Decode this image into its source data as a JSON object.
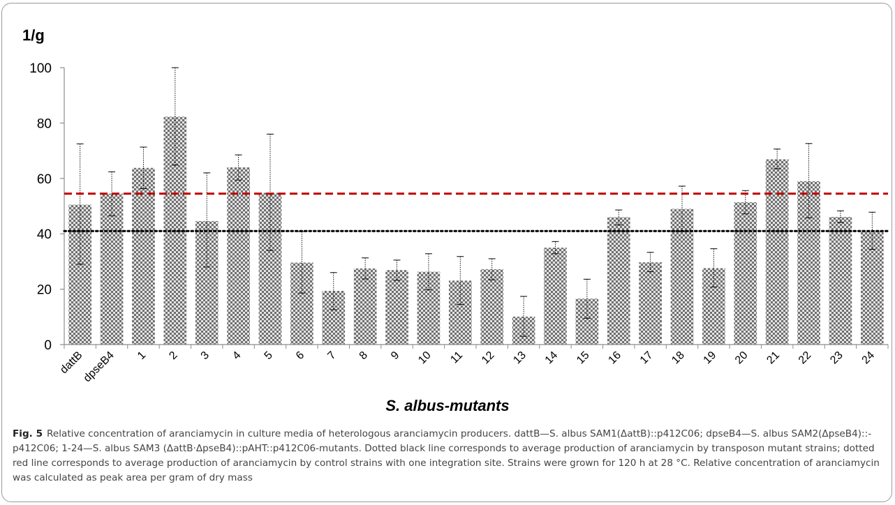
{
  "chart_data": {
    "type": "bar",
    "ylabel": "1/g",
    "xlabel": "S. albus-mutants",
    "ylim": [
      0,
      100
    ],
    "yticks": [
      0,
      20,
      40,
      60,
      80,
      100
    ],
    "categories": [
      "dattB",
      "dpseB4",
      "1",
      "2",
      "3",
      "4",
      "5",
      "6",
      "7",
      "8",
      "9",
      "10",
      "11",
      "12",
      "13",
      "14",
      "15",
      "16",
      "17",
      "18",
      "19",
      "20",
      "21",
      "22",
      "23",
      "24"
    ],
    "values": [
      50.5,
      54.5,
      63.8,
      82.3,
      44.6,
      64.0,
      54.8,
      29.6,
      19.4,
      27.5,
      26.9,
      26.3,
      23.1,
      27.2,
      10.1,
      35.0,
      16.6,
      46.0,
      29.7,
      49.0,
      27.6,
      51.4,
      66.9,
      59.0,
      46.1,
      41.1
    ],
    "error_upper": [
      72.5,
      62.4,
      71.3,
      100.0,
      62.0,
      68.5,
      76.0,
      40.8,
      26.0,
      31.3,
      30.5,
      32.8,
      31.8,
      31.0,
      17.4,
      37.2,
      23.6,
      48.6,
      33.3,
      57.2,
      34.6,
      55.6,
      70.6,
      72.6,
      48.3,
      47.8
    ],
    "error_lower": [
      29.0,
      46.5,
      56.3,
      64.8,
      28.0,
      59.4,
      34.0,
      18.6,
      12.6,
      23.7,
      23.2,
      19.8,
      14.5,
      23.4,
      3.0,
      32.8,
      9.5,
      43.2,
      26.3,
      40.8,
      20.8,
      47.2,
      63.5,
      45.8,
      44.1,
      34.4
    ],
    "reference_lines": [
      {
        "value": 54.5,
        "style": "dashed",
        "color": "#c00000"
      },
      {
        "value": 41.0,
        "style": "dotted",
        "color": "#000000"
      }
    ],
    "bar_pattern": "checkerboard",
    "grid": false
  },
  "caption": {
    "label": "Fig. 5",
    "text": "Relative concentration of aranciamycin in culture media of heterologous aranciamycin producers. dattB—S. albus SAM1(ΔattB)::p412C06; dpseB4—S. albus SAM2(ΔpseB4)::-p412C06; 1-24—S. albus SAM3 (ΔattB·ΔpseB4)::pAHT::p412C06-mutants. Dotted black line corresponds to average production of aranciamycin by transposon mutant strains; dotted red line corresponds to average production of aranciamycin by control strains with one integration site. Strains were grown for 120 h at 28 °C. Relative concentration of aranciamycin was calculated as peak area per gram of dry mass"
  },
  "colors": {
    "bar_dark": "#6f6f6f",
    "bar_light": "#e4e4e4",
    "axis": "#8c8c8c",
    "text": "#000000",
    "caption_text": "#444444"
  }
}
